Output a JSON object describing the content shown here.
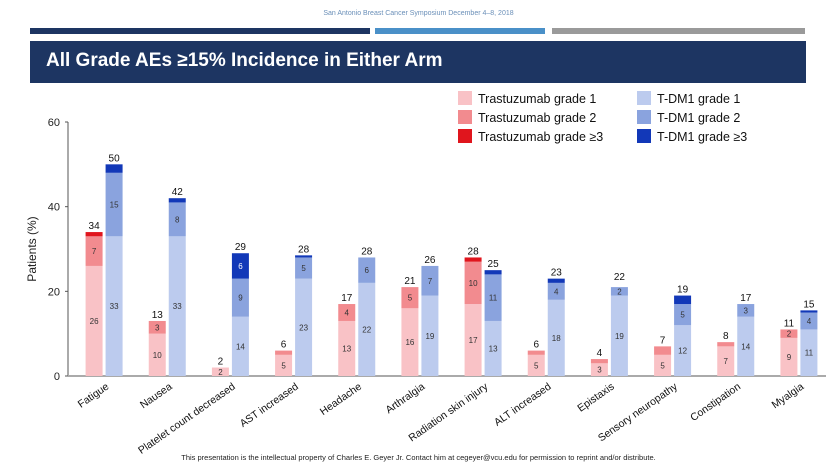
{
  "header": {
    "conference": "San Antonio Breast Cancer Symposium December 4–8, 2018",
    "title": "All Grade AEs ≥15% Incidence in Either Arm"
  },
  "footer": "This presentation is the intellectual property of Charles E. Geyer Jr. Contact him at cegeyer@vcu.edu for permission to reprint and/or distribute.",
  "chart_data": {
    "type": "bar",
    "stacked": true,
    "ylabel": "Patients (%)",
    "ylim": [
      0,
      60
    ],
    "yticks": [
      0,
      20,
      40,
      60
    ],
    "legend": [
      "Trastuzumab grade 1",
      "Trastuzumab grade 2",
      "Trastuzumab grade ≥3",
      "T-DM1 grade 1",
      "T-DM1 grade 2",
      "T-DM1 grade ≥3"
    ],
    "colors": {
      "t1": "#f9c2c6",
      "t2": "#f28b8f",
      "t3": "#e0151d",
      "d1": "#bccbee",
      "d2": "#8aa3de",
      "d3": "#1238b8"
    },
    "categories": [
      "Fatigue",
      "Nausea",
      "Platelet count decreased",
      "AST increased",
      "Headache",
      "Arthralgia",
      "Radiation skin injury",
      "ALT increased",
      "Epistaxis",
      "Sensory neuropathy",
      "Constipation",
      "Myalgia"
    ],
    "trastuzumab": [
      {
        "g1": 26,
        "g2": 7,
        "g3": 1,
        "total": 34
      },
      {
        "g1": 10,
        "g2": 3,
        "g3": 0,
        "total": 13
      },
      {
        "g1": 2,
        "g2": 0,
        "g3": 0,
        "total": 2
      },
      {
        "g1": 5,
        "g2": 1,
        "g3": 0,
        "total": 6
      },
      {
        "g1": 13,
        "g2": 4,
        "g3": 0,
        "total": 17
      },
      {
        "g1": 16,
        "g2": 5,
        "g3": 0,
        "total": 21
      },
      {
        "g1": 17,
        "g2": 10,
        "g3": 1,
        "total": 28
      },
      {
        "g1": 5,
        "g2": 1,
        "g3": 0,
        "total": 6
      },
      {
        "g1": 3,
        "g2": 1,
        "g3": 0,
        "total": 4
      },
      {
        "g1": 5,
        "g2": 2,
        "g3": 0,
        "total": 7
      },
      {
        "g1": 7,
        "g2": 1,
        "g3": 0,
        "total": 8
      },
      {
        "g1": 9,
        "g2": 2,
        "g3": 0,
        "total": 11
      }
    ],
    "tdm1": [
      {
        "g1": 33,
        "g2": 15,
        "g3": 2,
        "total": 50
      },
      {
        "g1": 33,
        "g2": 8,
        "g3": 1,
        "total": 42
      },
      {
        "g1": 14,
        "g2": 9,
        "g3": 6,
        "total": 29
      },
      {
        "g1": 23,
        "g2": 5,
        "g3": 0.5,
        "total": 28
      },
      {
        "g1": 22,
        "g2": 6,
        "g3": 0,
        "total": 28
      },
      {
        "g1": 19,
        "g2": 7,
        "g3": 0,
        "total": 26
      },
      {
        "g1": 13,
        "g2": 11,
        "g3": 1,
        "total": 25
      },
      {
        "g1": 18,
        "g2": 4,
        "g3": 1,
        "total": 23
      },
      {
        "g1": 19,
        "g2": 2,
        "g3": 0,
        "total": 22
      },
      {
        "g1": 12,
        "g2": 5,
        "g3": 2,
        "total": 19
      },
      {
        "g1": 14,
        "g2": 3,
        "g3": 0,
        "total": 17
      },
      {
        "g1": 11,
        "g2": 4,
        "g3": 0.5,
        "total": 15
      }
    ],
    "segment_labels": {
      "trastuzumab": [
        [
          "26",
          "7"
        ],
        [
          "10",
          "3"
        ],
        [
          "2",
          ""
        ],
        [
          "5",
          ""
        ],
        [
          "13",
          "4"
        ],
        [
          "16",
          "5"
        ],
        [
          "17",
          "10"
        ],
        [
          "5",
          ""
        ],
        [
          "3",
          ""
        ],
        [
          "5",
          ""
        ],
        [
          "7",
          ""
        ],
        [
          "9",
          "2"
        ]
      ],
      "tdm1": [
        [
          "33",
          "15"
        ],
        [
          "33",
          "8"
        ],
        [
          "14",
          "9",
          "6"
        ],
        [
          "23",
          "5"
        ],
        [
          "22",
          "6"
        ],
        [
          "19",
          "7"
        ],
        [
          "13",
          "11"
        ],
        [
          "18",
          "4"
        ],
        [
          "19",
          "2"
        ],
        [
          "12",
          "5"
        ],
        [
          "14",
          "3"
        ],
        [
          "11",
          "4"
        ]
      ]
    }
  }
}
